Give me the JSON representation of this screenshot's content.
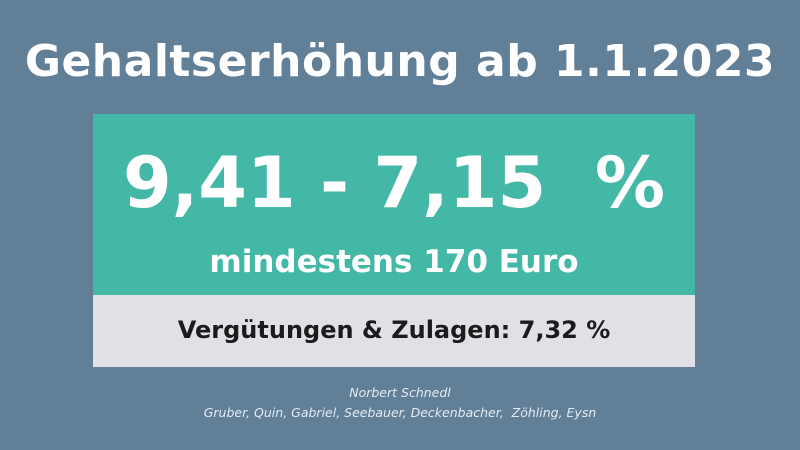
{
  "headline": "Gehaltserhöhung ab 1.1.2023",
  "range": "9,41 - 7,15  %",
  "minimum": "mindestens 170 Euro",
  "allowances": "Vergütungen & Zulagen: 7,32 %",
  "credits": {
    "author": "Norbert Schnedl",
    "names": "Gruber, Quin, Gabriel, Seebauer, Deckenbacher,  Zöhling, Eysn"
  },
  "colors": {
    "background": "#627f98",
    "teal": "#44b8a6",
    "grey_panel": "#dfe1e6",
    "text_light": "#ffffff",
    "text_dark": "#1b1b1b"
  }
}
